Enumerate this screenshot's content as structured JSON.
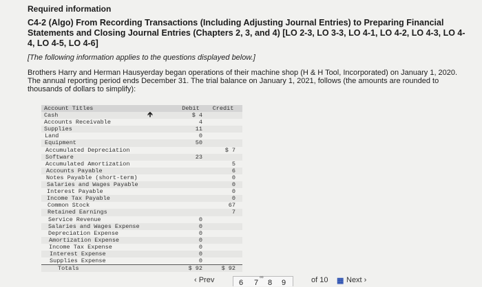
{
  "header": {
    "required": "Required information",
    "title": "C4-2 (Algo) From Recording Transactions (Including Adjusting Journal Entries) to Preparing Financial Statements and Closing Journal Entries (Chapters 2, 3, and 4) [LO 2-3, LO 3-3, LO 4-1, LO 4-2, LO 4-3, LO 4-4, LO 4-5, LO 4-6]",
    "note": "[The following information applies to the questions displayed below.]",
    "intro": "Brothers Harry and Herman Hausyerday began operations of their machine shop (H & H Tool, Incorporated) on January 1, 2020. The annual reporting period ends December 31. The trial balance on January 1, 2021, follows (the amounts are rounded to thousands of dollars to simplify):"
  },
  "table": {
    "headers": {
      "title": "Account Titles",
      "debit": "Debit",
      "credit": "Credit"
    },
    "rows": [
      {
        "t": "Cash",
        "d": "$ 4",
        "c": ""
      },
      {
        "t": "Accounts Receivable",
        "d": "4",
        "c": ""
      },
      {
        "t": "Supplies",
        "d": "11",
        "c": ""
      },
      {
        "t": "Land",
        "d": "0",
        "c": ""
      },
      {
        "t": "Equipment",
        "d": "50",
        "c": ""
      },
      {
        "t": "Accumulated Depreciation",
        "d": "",
        "c": "$ 7"
      },
      {
        "t": "Software",
        "d": "23",
        "c": ""
      },
      {
        "t": "Accumulated Amortization",
        "d": "",
        "c": "5"
      },
      {
        "t": "Accounts Payable",
        "d": "",
        "c": "6"
      },
      {
        "t": "Notes Payable (short-term)",
        "d": "",
        "c": "0"
      },
      {
        "t": "Salaries and Wages Payable",
        "d": "",
        "c": "0"
      },
      {
        "t": "Interest Payable",
        "d": "",
        "c": "0"
      },
      {
        "t": "Income Tax Payable",
        "d": "",
        "c": "0"
      },
      {
        "t": "Common Stock",
        "d": "",
        "c": "67"
      },
      {
        "t": "Retained Earnings",
        "d": "",
        "c": "7"
      },
      {
        "t": "Service Revenue",
        "d": "0",
        "c": ""
      },
      {
        "t": "Salaries and Wages Expense",
        "d": "0",
        "c": ""
      },
      {
        "t": "Depreciation Expense",
        "d": "0",
        "c": ""
      },
      {
        "t": "Amortization Expense",
        "d": "0",
        "c": ""
      },
      {
        "t": "Income Tax Expense",
        "d": "0",
        "c": ""
      },
      {
        "t": "Interest Expense",
        "d": "0",
        "c": ""
      },
      {
        "t": "Supplies Expense",
        "d": "0",
        "c": ""
      }
    ],
    "totals": {
      "t": "Totals",
      "d": "$ 92",
      "c": "$ 92"
    }
  },
  "nav": {
    "prev": "‹ Prev",
    "pages": [
      "6",
      "7",
      "8",
      "9"
    ],
    "of": "of 10",
    "next": "Next ›",
    "grid_icon": "grid-icon",
    "link_icon": "link-icon"
  }
}
